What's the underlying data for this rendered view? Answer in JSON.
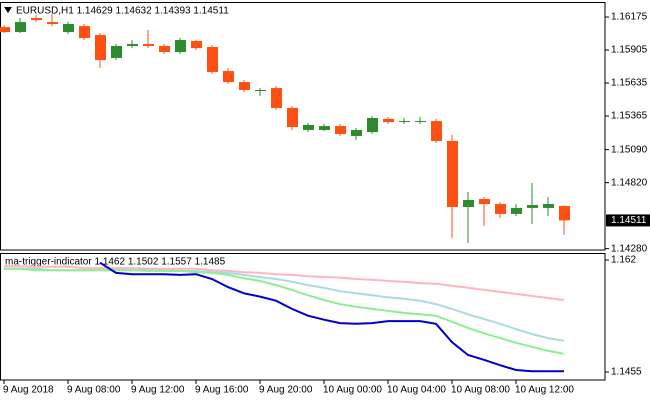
{
  "chart_data": [
    {
      "type": "candlestick",
      "title": "EURUSD,H1  1.14629 1.14632 1.14393 1.14511",
      "categories": [
        "9 Aug 2018",
        null,
        null,
        null,
        "9 Aug 08:00",
        null,
        null,
        null,
        "9 Aug 12:00",
        null,
        null,
        null,
        "9 Aug 16:00",
        null,
        null,
        null,
        "9 Aug 20:00",
        null,
        null,
        null,
        "10 Aug 00:00",
        null,
        null,
        null,
        "10 Aug 04:00",
        null,
        null,
        null,
        "10 Aug 08:00",
        null,
        null,
        null,
        "10 Aug 12:00",
        null,
        null,
        null
      ],
      "open": [
        1.16093,
        1.16052,
        1.16167,
        1.16134,
        1.16052,
        1.16101,
        1.16028,
        1.1584,
        1.15938,
        1.15954,
        1.15938,
        1.15889,
        1.15979,
        1.1593,
        1.15733,
        1.15643,
        1.1557,
        1.15594,
        1.15431,
        1.15251,
        1.15251,
        1.15283,
        1.15202,
        1.15234,
        1.15341,
        1.15316,
        1.15316,
        1.15324,
        1.15161,
        1.14621,
        1.14686,
        1.14645,
        1.14564,
        1.14613,
        1.14613,
        1.14629
      ],
      "high": [
        1.1611,
        1.16167,
        1.16191,
        1.162,
        1.16134,
        1.16118,
        1.16044,
        1.15954,
        1.15987,
        1.16069,
        1.15954,
        1.16003,
        1.15987,
        1.15946,
        1.15758,
        1.1566,
        1.15594,
        1.15611,
        1.15447,
        1.15308,
        1.153,
        1.153,
        1.15267,
        1.15365,
        1.15357,
        1.15349,
        1.15357,
        1.15341,
        1.1521,
        1.14744,
        1.14703,
        1.14662,
        1.14645,
        1.14817,
        1.14703,
        1.14632
      ],
      "low": [
        1.16044,
        1.16044,
        1.16134,
        1.16101,
        1.16036,
        1.15987,
        1.15758,
        1.15823,
        1.15921,
        1.15921,
        1.15872,
        1.15872,
        1.15905,
        1.15709,
        1.15627,
        1.15561,
        1.15529,
        1.15414,
        1.15251,
        1.15234,
        1.15242,
        1.15202,
        1.15169,
        1.15218,
        1.153,
        1.153,
        1.153,
        1.15144,
        1.14367,
        1.14326,
        1.14466,
        1.14531,
        1.14547,
        1.14482,
        1.14547,
        1.14393
      ],
      "close": [
        1.16052,
        1.16134,
        1.1615,
        1.16118,
        1.16118,
        1.16003,
        1.15823,
        1.15938,
        1.15954,
        1.15938,
        1.15889,
        1.15987,
        1.15921,
        1.15725,
        1.15643,
        1.15578,
        1.15578,
        1.15431,
        1.15275,
        1.15292,
        1.15283,
        1.15218,
        1.15251,
        1.15349,
        1.15316,
        1.15324,
        1.15324,
        1.15161,
        1.14621,
        1.14678,
        1.14645,
        1.14564,
        1.14613,
        1.14637,
        1.14645,
        1.14511
      ],
      "up_color": "#2e8b2e",
      "down_color": "#ff5014",
      "ylim": [
        1.14269,
        1.16298
      ],
      "yticks": [
        1.16175,
        1.15905,
        1.15635,
        1.15365,
        {
          "value": 1.1509,
          "label": "1.15090"
        },
        {
          "value": 1.1482,
          "label": "1.14820"
        },
        {
          "value": 1.1428,
          "label": "1.14280"
        }
      ],
      "last_price": 1.14511
    },
    {
      "type": "line",
      "title": "ma-trigger-indicator 1.1462 1.1502 1.1557 1.1485",
      "series": [
        {
          "color": "#ffb6c1",
          "values": [
            1.1611,
            1.1611,
            1.161,
            1.161,
            1.161,
            1.1608,
            1.1608,
            1.1608,
            1.1608,
            1.1607,
            1.1607,
            1.1607,
            1.1607,
            1.1605,
            1.1604,
            1.1602,
            1.1601,
            1.1599,
            1.1598,
            1.1596,
            1.1595,
            1.1594,
            1.1592,
            1.1591,
            1.1589,
            1.1588,
            1.1586,
            1.1585,
            1.1582,
            1.1579,
            1.1576,
            1.1573,
            1.157,
            1.1567,
            1.1564,
            1.1561
          ]
        },
        {
          "color": "#add8e6",
          "values": [
            1.1607,
            1.1607,
            1.1607,
            1.1605,
            1.1605,
            1.1605,
            1.1605,
            1.1605,
            1.1605,
            1.1605,
            1.1604,
            1.1604,
            1.1604,
            1.1602,
            1.1601,
            1.1598,
            1.1595,
            1.1592,
            1.1588,
            1.1583,
            1.1579,
            1.1574,
            1.1571,
            1.1568,
            1.1565,
            1.1563,
            1.156,
            1.1555,
            1.1548,
            1.154,
            1.1533,
            1.1526,
            1.1518,
            1.1511,
            1.1505,
            1.1501
          ]
        },
        {
          "color": "#90ee90",
          "values": [
            1.1607,
            1.1607,
            1.1605,
            1.1605,
            1.1605,
            1.1605,
            1.1605,
            1.1605,
            1.1605,
            1.1604,
            1.1604,
            1.1604,
            1.1602,
            1.1601,
            1.1598,
            1.1593,
            1.1589,
            1.1583,
            1.1576,
            1.1568,
            1.1561,
            1.1555,
            1.1551,
            1.1548,
            1.1545,
            1.1542,
            1.154,
            1.1538,
            1.1529,
            1.152,
            1.1512,
            1.1505,
            1.1498,
            1.1492,
            1.1486,
            1.1482
          ]
        },
        {
          "color": "#0000cd",
          "values": [
            null,
            null,
            null,
            null,
            null,
            null,
            1.1616,
            1.1601,
            1.1599,
            1.1599,
            1.1599,
            1.1598,
            1.1599,
            1.1592,
            1.158,
            1.1571,
            1.1566,
            1.156,
            1.1548,
            1.1538,
            1.1532,
            1.1527,
            1.1526,
            1.1527,
            1.153,
            1.153,
            1.153,
            1.1526,
            1.1499,
            1.148,
            1.1473,
            1.1465,
            1.1458,
            1.1456,
            1.1456,
            1.1456
          ]
        }
      ],
      "ylim": [
        1.14432,
        1.16303
      ],
      "yticks": [
        1.162,
        1.1455
      ]
    }
  ]
}
